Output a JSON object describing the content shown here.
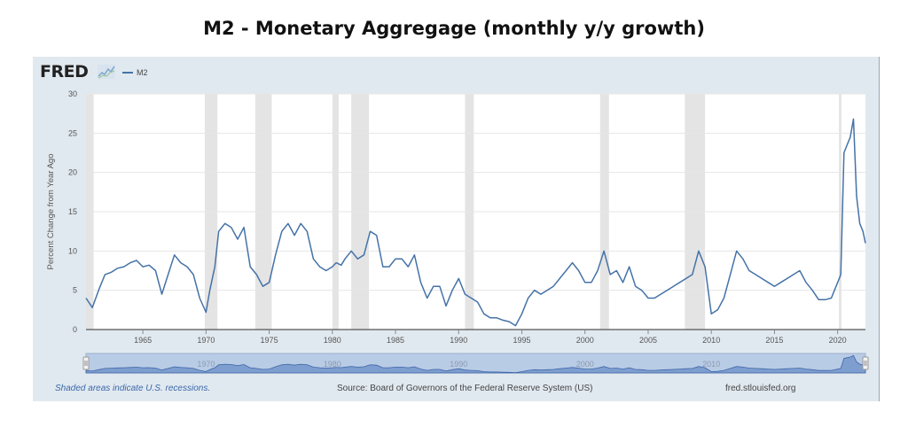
{
  "page": {
    "title": "M2 - Monetary Aggregage (monthly y/y growth)",
    "logo_text": "FRED",
    "footer": {
      "note": "Shaded areas indicate U.S. recessions.",
      "source": "Source: Board of Governors of the Federal Reserve System (US)",
      "url": "fred.stlouisfed.org"
    }
  },
  "colors": {
    "line": "#4572a7",
    "recession": "#e4e4e4",
    "navigator_fill": "#6b8fc7",
    "plot_bg": "#ffffff",
    "frame_bg": "#e1e9f0"
  },
  "chart_data": {
    "type": "line",
    "title": "M2 - Monetary Aggregage (monthly y/y growth)",
    "xlabel": "",
    "ylabel": "Percent Change from Year Ago",
    "xlim": [
      1960.5,
      2022.2
    ],
    "ylim": [
      0,
      30
    ],
    "yticks": [
      0,
      5,
      10,
      15,
      20,
      25,
      30
    ],
    "xticks": [
      1965,
      1970,
      1975,
      1980,
      1985,
      1990,
      1995,
      2000,
      2005,
      2010,
      2015,
      2020
    ],
    "grid": true,
    "legend": {
      "position": "top-left",
      "entries": [
        "M2"
      ]
    },
    "recessions": [
      [
        1960.3,
        1961.1
      ],
      [
        1969.9,
        1970.9
      ],
      [
        1973.9,
        1975.2
      ],
      [
        1980.0,
        1980.5
      ],
      [
        1981.5,
        1982.9
      ],
      [
        1990.5,
        1991.2
      ],
      [
        2001.2,
        2001.9
      ],
      [
        2007.9,
        2009.5
      ],
      [
        2020.1,
        2020.3
      ]
    ],
    "navigator_labels": [
      "1970",
      "1980",
      "1990",
      "2000",
      "2010"
    ],
    "series": [
      {
        "name": "M2",
        "x": [
          1960.5,
          1961.0,
          1961.5,
          1962.0,
          1962.5,
          1963.0,
          1963.5,
          1964.0,
          1964.5,
          1965.0,
          1965.5,
          1966.0,
          1966.5,
          1967.0,
          1967.5,
          1968.0,
          1968.5,
          1969.0,
          1969.5,
          1970.0,
          1970.3,
          1970.7,
          1971.0,
          1971.5,
          1972.0,
          1972.5,
          1973.0,
          1973.5,
          1974.0,
          1974.5,
          1975.0,
          1975.5,
          1976.0,
          1976.5,
          1977.0,
          1977.5,
          1978.0,
          1978.5,
          1979.0,
          1979.5,
          1980.0,
          1980.3,
          1980.7,
          1981.0,
          1981.5,
          1982.0,
          1982.5,
          1983.0,
          1983.5,
          1984.0,
          1984.5,
          1985.0,
          1985.5,
          1986.0,
          1986.5,
          1987.0,
          1987.5,
          1988.0,
          1988.5,
          1989.0,
          1989.5,
          1990.0,
          1990.5,
          1991.0,
          1991.5,
          1992.0,
          1992.5,
          1993.0,
          1993.5,
          1994.0,
          1994.5,
          1995.0,
          1995.5,
          1996.0,
          1996.5,
          1997.0,
          1997.5,
          1998.0,
          1998.5,
          1999.0,
          1999.5,
          2000.0,
          2000.5,
          2001.0,
          2001.5,
          2002.0,
          2002.5,
          2003.0,
          2003.5,
          2004.0,
          2004.5,
          2005.0,
          2005.5,
          2006.0,
          2006.5,
          2007.0,
          2007.5,
          2008.0,
          2008.5,
          2009.0,
          2009.5,
          2010.0,
          2010.5,
          2011.0,
          2011.5,
          2012.0,
          2012.5,
          2013.0,
          2013.5,
          2014.0,
          2014.5,
          2015.0,
          2015.5,
          2016.0,
          2016.5,
          2017.0,
          2017.5,
          2018.0,
          2018.5,
          2019.0,
          2019.5,
          2020.0,
          2020.25,
          2020.5,
          2020.75,
          2021.0,
          2021.25,
          2021.5,
          2021.75,
          2022.0,
          2022.2
        ],
        "values": [
          4.0,
          2.8,
          5.0,
          7.0,
          7.3,
          7.8,
          8.0,
          8.5,
          8.8,
          8.0,
          8.2,
          7.5,
          4.5,
          7.0,
          9.5,
          8.5,
          8.0,
          7.0,
          4.0,
          2.2,
          5.0,
          8.0,
          12.5,
          13.5,
          13.0,
          11.5,
          13.0,
          8.0,
          7.0,
          5.5,
          6.0,
          9.5,
          12.5,
          13.5,
          12.0,
          13.5,
          12.5,
          9.0,
          8.0,
          7.5,
          8.0,
          8.5,
          8.2,
          9.0,
          10.0,
          9.0,
          9.5,
          12.5,
          12.0,
          8.0,
          8.0,
          9.0,
          9.0,
          8.0,
          9.5,
          6.0,
          4.0,
          5.5,
          5.5,
          3.0,
          5.0,
          6.5,
          4.5,
          4.0,
          3.5,
          2.0,
          1.5,
          1.5,
          1.2,
          1.0,
          0.5,
          2.0,
          4.0,
          5.0,
          4.5,
          5.0,
          5.5,
          6.5,
          7.5,
          8.5,
          7.5,
          6.0,
          6.0,
          7.5,
          10.0,
          7.0,
          7.5,
          6.0,
          8.0,
          5.5,
          5.0,
          4.0,
          4.0,
          4.5,
          5.0,
          5.5,
          6.0,
          6.5,
          7.0,
          10.0,
          8.0,
          2.0,
          2.5,
          4.0,
          7.0,
          10.0,
          9.0,
          7.5,
          7.0,
          6.5,
          6.0,
          5.5,
          6.0,
          6.5,
          7.0,
          7.5,
          6.0,
          5.0,
          3.8,
          3.8,
          4.0,
          6.0,
          7.0,
          22.5,
          23.5,
          24.5,
          26.8,
          17.0,
          13.5,
          12.5,
          11.0
        ]
      }
    ]
  }
}
